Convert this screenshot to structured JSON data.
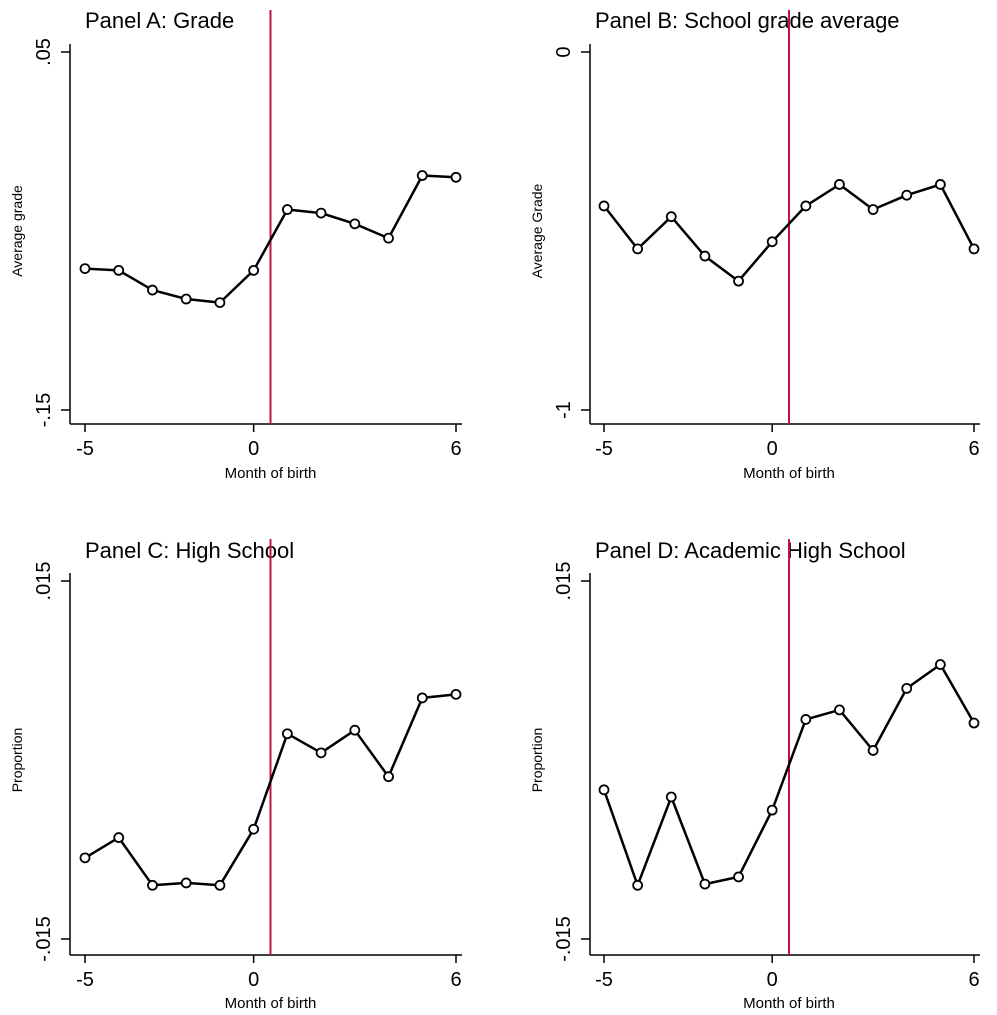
{
  "colors": {
    "series": "#000000",
    "cutoff": "#c0143c",
    "background": "#ffffff"
  },
  "chart_data": [
    {
      "type": "line",
      "title": "Panel A: Grade",
      "xlabel": "Month of birth",
      "ylabel": "Average grade",
      "xlim": [
        -5,
        6
      ],
      "ylim": [
        -0.15,
        0.05
      ],
      "x_tick_labels": [
        "-5",
        "0",
        "6"
      ],
      "y_tick_labels": [
        ".05",
        "-.15"
      ],
      "cutoff_x": 0.5,
      "markers": "hollow-circle",
      "x": [
        -5,
        -4,
        -3,
        -2,
        -1,
        0,
        1,
        2,
        3,
        4,
        5,
        6
      ],
      "values": [
        -0.071,
        -0.072,
        -0.083,
        -0.088,
        -0.09,
        -0.072,
        -0.038,
        -0.04,
        -0.046,
        -0.054,
        -0.019,
        -0.02
      ]
    },
    {
      "type": "line",
      "title": "Panel B: School grade average",
      "xlabel": "Month of birth",
      "ylabel": "Average Grade",
      "xlim": [
        -5,
        6
      ],
      "ylim": [
        -1,
        0
      ],
      "x_tick_labels": [
        "-5",
        "0",
        "6"
      ],
      "y_tick_labels": [
        "0",
        "-1"
      ],
      "cutoff_x": 0.5,
      "markers": "hollow-circle",
      "x": [
        -5,
        -4,
        -3,
        -2,
        -1,
        0,
        1,
        2,
        3,
        4,
        5,
        6
      ],
      "values": [
        -0.43,
        -0.55,
        -0.46,
        -0.57,
        -0.64,
        -0.53,
        -0.43,
        -0.37,
        -0.44,
        -0.4,
        -0.37,
        -0.55
      ]
    },
    {
      "type": "line",
      "title": "Panel C: High School",
      "xlabel": "Month of birth",
      "ylabel": "Proportion",
      "xlim": [
        -5,
        6
      ],
      "ylim": [
        -0.015,
        0.015
      ],
      "x_tick_labels": [
        "-5",
        "0",
        "6"
      ],
      "y_tick_labels": [
        ".015",
        "-.015"
      ],
      "cutoff_x": 0.5,
      "markers": "hollow-circle",
      "x": [
        -5,
        -4,
        -3,
        -2,
        -1,
        0,
        1,
        2,
        3,
        4,
        5,
        6
      ],
      "values": [
        -0.0082,
        -0.0065,
        -0.0105,
        -0.0103,
        -0.0105,
        -0.0058,
        0.0022,
        0.0006,
        0.0025,
        -0.0014,
        0.0052,
        0.0055
      ]
    },
    {
      "type": "line",
      "title": "Panel D: Academic High School",
      "xlabel": "Month of birth",
      "ylabel": "Proportion",
      "xlim": [
        -5,
        6
      ],
      "ylim": [
        -0.015,
        0.015
      ],
      "x_tick_labels": [
        "-5",
        "0",
        "6"
      ],
      "y_tick_labels": [
        ".015",
        "-.015"
      ],
      "cutoff_x": 0.5,
      "markers": "hollow-circle",
      "x": [
        -5,
        -4,
        -3,
        -2,
        -1,
        0,
        1,
        2,
        3,
        4,
        5,
        6
      ],
      "values": [
        -0.0025,
        -0.0105,
        -0.0031,
        -0.0104,
        -0.0098,
        -0.0042,
        0.0034,
        0.0042,
        0.0008,
        0.006,
        0.008,
        0.0031
      ]
    }
  ]
}
